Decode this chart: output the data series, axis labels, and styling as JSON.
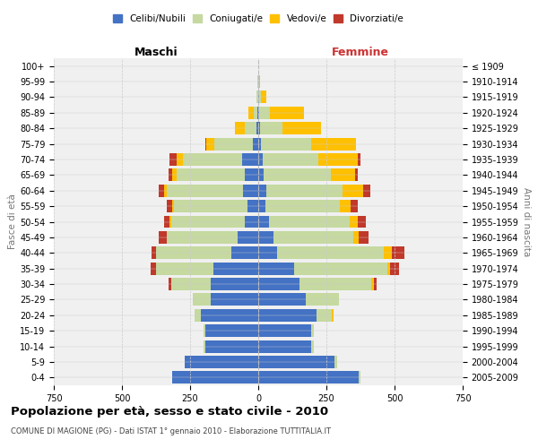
{
  "age_groups": [
    "0-4",
    "5-9",
    "10-14",
    "15-19",
    "20-24",
    "25-29",
    "30-34",
    "35-39",
    "40-44",
    "45-49",
    "50-54",
    "55-59",
    "60-64",
    "65-69",
    "70-74",
    "75-79",
    "80-84",
    "85-89",
    "90-94",
    "95-99",
    "100+"
  ],
  "birth_years": [
    "2005-2009",
    "2000-2004",
    "1995-1999",
    "1990-1994",
    "1985-1989",
    "1980-1984",
    "1975-1979",
    "1970-1974",
    "1965-1969",
    "1960-1964",
    "1955-1959",
    "1950-1954",
    "1945-1949",
    "1940-1944",
    "1935-1939",
    "1930-1934",
    "1925-1929",
    "1920-1924",
    "1915-1919",
    "1910-1914",
    "≤ 1909"
  ],
  "males": {
    "celibi": [
      315,
      270,
      195,
      195,
      210,
      175,
      175,
      165,
      100,
      75,
      50,
      40,
      55,
      50,
      60,
      20,
      5,
      2,
      1,
      0,
      0
    ],
    "coniugati": [
      0,
      0,
      5,
      5,
      25,
      65,
      145,
      210,
      275,
      260,
      270,
      270,
      280,
      250,
      215,
      140,
      45,
      15,
      5,
      2,
      0
    ],
    "vedovi": [
      0,
      0,
      0,
      0,
      0,
      0,
      0,
      0,
      0,
      0,
      5,
      5,
      10,
      15,
      25,
      30,
      35,
      20,
      2,
      0,
      0
    ],
    "divorziati": [
      0,
      0,
      0,
      0,
      0,
      0,
      10,
      20,
      15,
      30,
      20,
      20,
      20,
      15,
      25,
      5,
      0,
      0,
      0,
      0,
      0
    ]
  },
  "females": {
    "nubili": [
      370,
      280,
      195,
      195,
      215,
      175,
      150,
      130,
      70,
      55,
      40,
      25,
      30,
      20,
      15,
      10,
      5,
      3,
      2,
      1,
      0
    ],
    "coniugate": [
      5,
      10,
      10,
      10,
      55,
      120,
      265,
      345,
      390,
      295,
      295,
      275,
      280,
      245,
      205,
      185,
      85,
      40,
      8,
      2,
      0
    ],
    "vedove": [
      0,
      0,
      0,
      0,
      5,
      0,
      10,
      10,
      30,
      20,
      30,
      40,
      75,
      90,
      145,
      165,
      140,
      125,
      20,
      5,
      0
    ],
    "divorziate": [
      0,
      0,
      0,
      0,
      0,
      0,
      10,
      30,
      45,
      35,
      30,
      25,
      25,
      10,
      10,
      0,
      0,
      0,
      0,
      0,
      0
    ]
  },
  "colors": {
    "celibi": "#4472c4",
    "coniugati": "#c5d9a0",
    "vedovi": "#ffc000",
    "divorziati": "#c0392b"
  },
  "legend_labels": [
    "Celibi/Nubili",
    "Coniugati/e",
    "Vedovi/e",
    "Divorziati/e"
  ],
  "xlim": 750,
  "xticks": [
    -750,
    -500,
    -250,
    0,
    250,
    500,
    750
  ],
  "title": "Popolazione per età, sesso e stato civile - 2010",
  "subtitle": "COMUNE DI MAGIONE (PG) - Dati ISTAT 1° gennaio 2010 - Elaborazione TUTTITALIA.IT",
  "ylabel_left": "Fasce di età",
  "ylabel_right": "Anni di nascita",
  "xlabel_males": "Maschi",
  "xlabel_females": "Femmine",
  "bg_color": "#f0f0f0",
  "grid_color": "#cccccc"
}
